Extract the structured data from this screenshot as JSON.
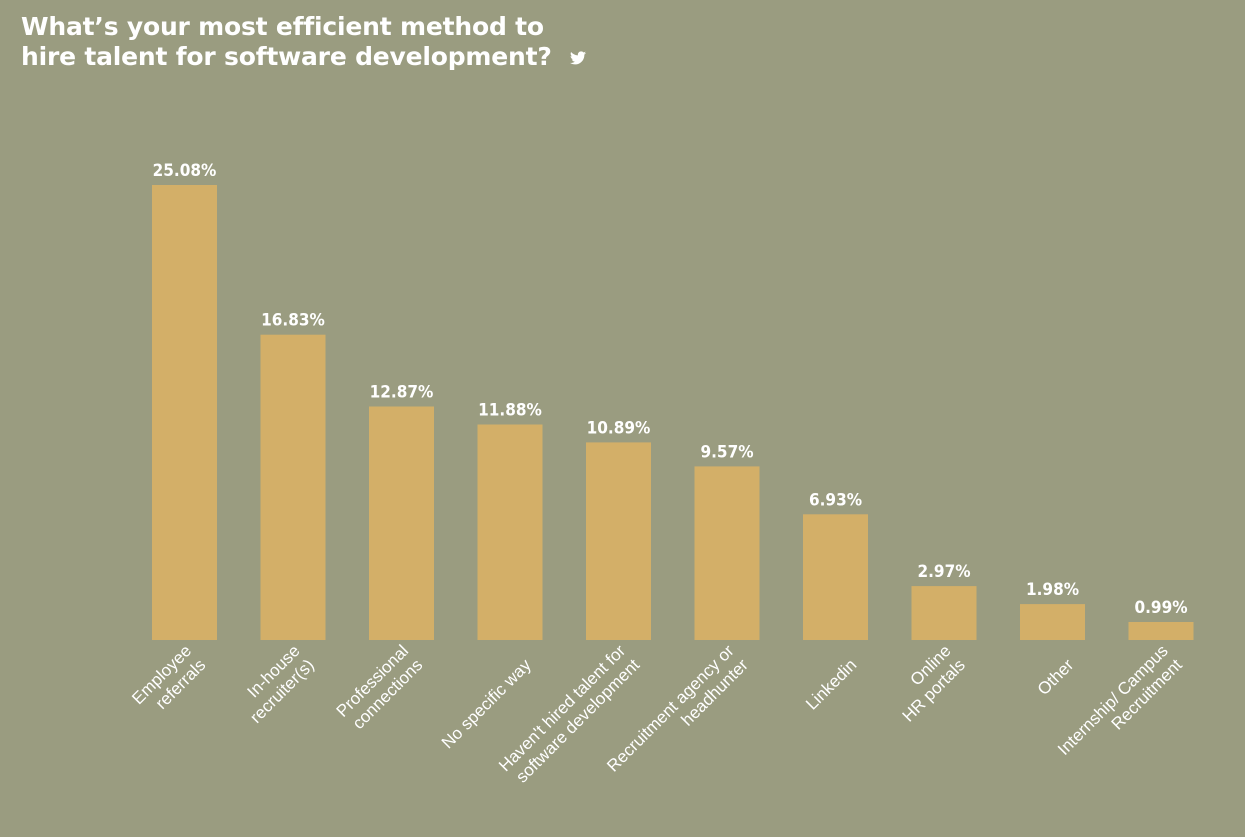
{
  "header": {
    "title_line1": "What’s your most efficient method to",
    "title_line2": "hire talent for software development?"
  },
  "colors": {
    "background": "#9a9c80",
    "bar": "#d3af68",
    "text": "#ffffff"
  },
  "share_icon": "twitter-icon",
  "chart_data": {
    "type": "bar",
    "title": "What’s your most efficient method to hire talent for software development?",
    "xlabel": "",
    "ylabel": "",
    "ylim": [
      0,
      25.08
    ],
    "grid": false,
    "categories": [
      [
        "Employee",
        "referrals"
      ],
      [
        "In-house",
        "recruiter(s)"
      ],
      [
        "Professional",
        "connections"
      ],
      [
        "No specific way"
      ],
      [
        "Haven't hired talent for",
        "software development"
      ],
      [
        "Recruitment agency or",
        "headhunter"
      ],
      [
        "Linkedin"
      ],
      [
        "Online",
        "HR portals"
      ],
      [
        "Other"
      ],
      [
        "Internship/ Campus",
        "Recruitment"
      ]
    ],
    "values": [
      25.08,
      16.83,
      12.87,
      11.88,
      10.89,
      9.57,
      6.93,
      2.97,
      1.98,
      0.99
    ],
    "value_labels": [
      "25.08%",
      "16.83%",
      "12.87%",
      "11.88%",
      "10.89%",
      "9.57%",
      "6.93%",
      "2.97%",
      "1.98%",
      "0.99%"
    ]
  }
}
